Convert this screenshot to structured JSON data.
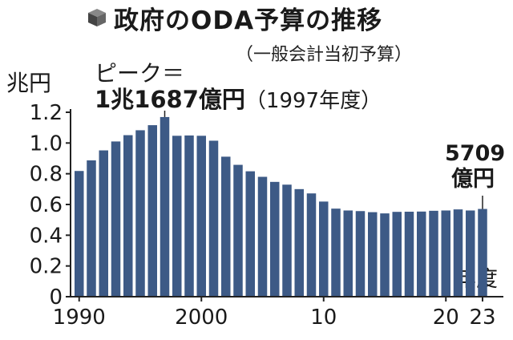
{
  "title": "政府のODA予算の推移",
  "subtitle": "（一般会計当初予算）",
  "icons": {
    "title_icon": "cube-icon"
  },
  "colors": {
    "bar": "#3d5a86",
    "axis": "#222222"
  },
  "annotations": {
    "peak_line1": "ピーク＝",
    "peak_value": "1兆1687億円",
    "peak_year": "（1997年度）",
    "last_value": "5709",
    "last_unit": "億円"
  },
  "chart_data": {
    "type": "bar",
    "title": "政府のODA予算の推移",
    "subtitle": "（一般会計当初予算）",
    "ylabel": "兆円",
    "xlabel": "年度",
    "ylim": [
      0,
      1.2
    ],
    "yticks": [
      "0",
      "0.2",
      "0.4",
      "0.6",
      "0.8",
      "1.0",
      "1.2"
    ],
    "xtick_labels": [
      {
        "year": 1990,
        "label": "1990"
      },
      {
        "year": 2000,
        "label": "2000"
      },
      {
        "year": 2010,
        "label": "10"
      },
      {
        "year": 2020,
        "label": "20"
      },
      {
        "year": 2023,
        "label": "23"
      }
    ],
    "categories": [
      1990,
      1991,
      1992,
      1993,
      1994,
      1995,
      1996,
      1997,
      1998,
      1999,
      2000,
      2001,
      2002,
      2003,
      2004,
      2005,
      2006,
      2007,
      2008,
      2009,
      2010,
      2011,
      2012,
      2013,
      2014,
      2015,
      2016,
      2017,
      2018,
      2019,
      2020,
      2021,
      2022,
      2023
    ],
    "values": [
      0.818,
      0.887,
      0.952,
      1.01,
      1.051,
      1.083,
      1.116,
      1.169,
      1.047,
      1.049,
      1.047,
      1.015,
      0.911,
      0.858,
      0.816,
      0.78,
      0.747,
      0.729,
      0.7,
      0.672,
      0.619,
      0.573,
      0.561,
      0.557,
      0.55,
      0.542,
      0.552,
      0.553,
      0.554,
      0.559,
      0.561,
      0.568,
      0.561,
      0.571
    ],
    "grid": false,
    "legend": "none"
  }
}
